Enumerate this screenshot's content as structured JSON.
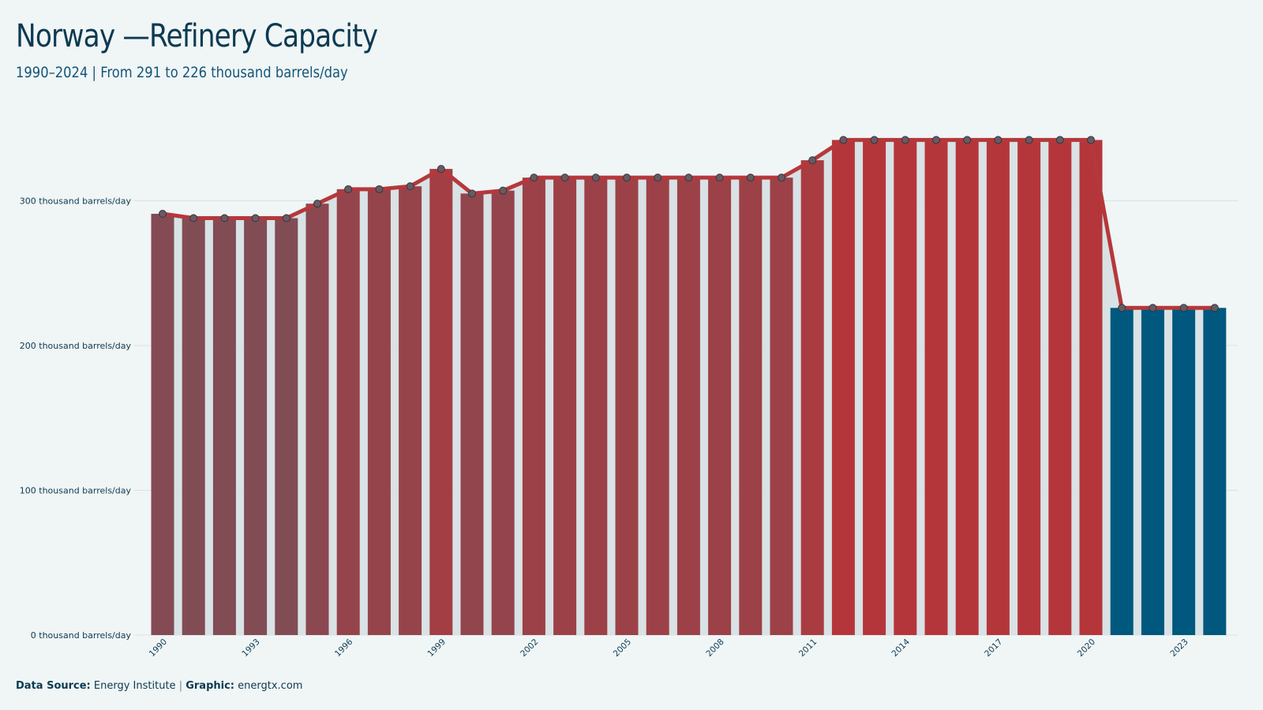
{
  "title": "Norway —Refinery Capacity",
  "subtitle": "1990–2024 | From 291 to 226 thousand barrels/day",
  "footer": {
    "source_label": "Data Source:",
    "source_value": "Energy Institute",
    "separator": "|",
    "graphic_label": "Graphic:",
    "graphic_value": "energtx.com"
  },
  "colors": {
    "background": "#f0f5f5",
    "line": "#b5383b",
    "marker_fill": "#6b5961",
    "last_years_bar": "#00587e",
    "bar_low": "#824c55",
    "bar_high": "#b5363a",
    "area_fill": "#d6e0e3"
  },
  "chart_data": {
    "type": "bar",
    "title": "Norway —Refinery Capacity",
    "subtitle": "1990–2024 | From 291 to 226 thousand barrels/day",
    "unit": "thousand barrels/day",
    "x": [
      1990,
      1991,
      1992,
      1993,
      1994,
      1995,
      1996,
      1997,
      1998,
      1999,
      2000,
      2001,
      2002,
      2003,
      2004,
      2005,
      2006,
      2007,
      2008,
      2009,
      2010,
      2011,
      2012,
      2013,
      2014,
      2015,
      2016,
      2017,
      2018,
      2019,
      2020,
      2021,
      2022,
      2023,
      2024
    ],
    "values": [
      291,
      288,
      288,
      288,
      288,
      298,
      308,
      308,
      310,
      322,
      305,
      307,
      316,
      316,
      316,
      316,
      316,
      316,
      316,
      316,
      316,
      328,
      342,
      342,
      342,
      342,
      342,
      342,
      342,
      342,
      342,
      226,
      226,
      226,
      226
    ],
    "x_tick_labels": [
      "1990",
      "1993",
      "1996",
      "1999",
      "2002",
      "2005",
      "2008",
      "2011",
      "2014",
      "2017",
      "2020",
      "2023"
    ],
    "y_ticks": [
      0,
      100,
      200,
      300
    ],
    "y_tick_labels": [
      "0 thousand barrels/day",
      "100 thousand barrels/day",
      "200 thousand barrels/day",
      "300 thousand barrels/day"
    ],
    "ylim": [
      0,
      360
    ],
    "grid": "horizontal",
    "legend": "none",
    "overlay": "line with markers"
  }
}
